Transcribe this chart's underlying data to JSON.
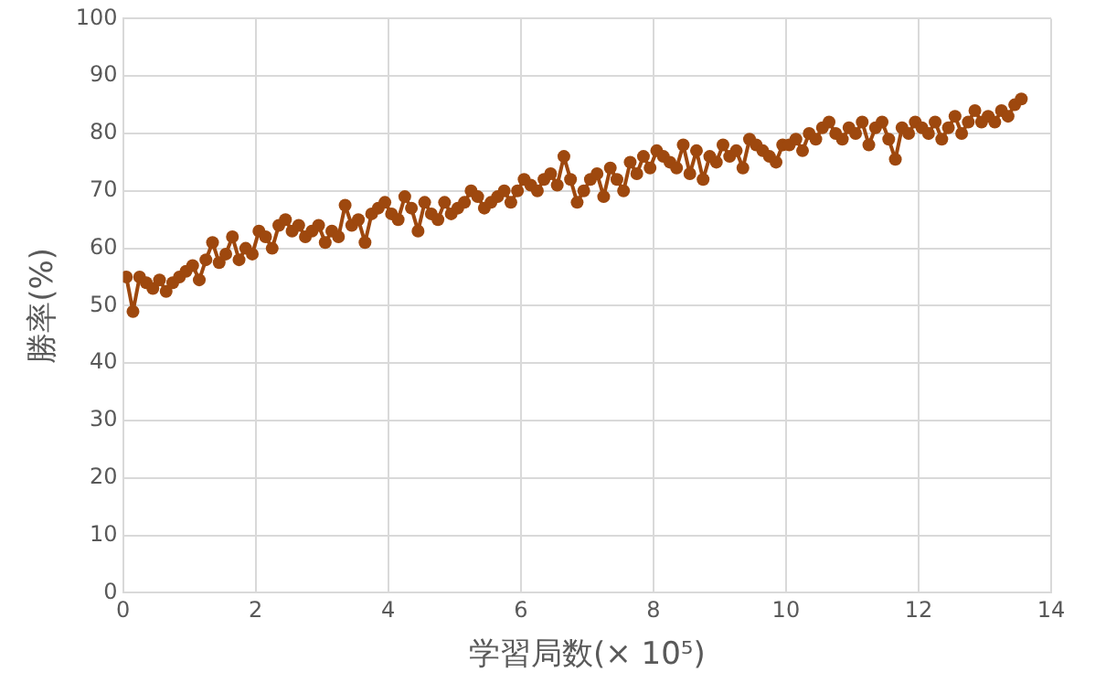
{
  "chart_data": {
    "type": "line",
    "xlabel": "学習局数(× 10⁵)",
    "ylabel": "勝率(%)",
    "marker": "circle",
    "line_style": "solid",
    "grid": true,
    "legend": false,
    "xlim": [
      0,
      14
    ],
    "xticks": [
      0,
      2,
      4,
      6,
      8,
      10,
      12,
      14
    ],
    "ylim": [
      0,
      100
    ],
    "yticks": [
      0,
      10,
      20,
      30,
      40,
      50,
      60,
      70,
      80,
      90,
      100
    ],
    "series": [
      {
        "color": "#9e480e",
        "x": [
          0.05,
          0.15,
          0.25,
          0.35,
          0.45,
          0.55,
          0.65,
          0.75,
          0.85,
          0.95,
          1.05,
          1.15,
          1.25,
          1.35,
          1.45,
          1.55,
          1.65,
          1.75,
          1.85,
          1.95,
          2.05,
          2.15,
          2.25,
          2.35,
          2.45,
          2.55,
          2.65,
          2.75,
          2.85,
          2.95,
          3.05,
          3.15,
          3.25,
          3.35,
          3.45,
          3.55,
          3.65,
          3.75,
          3.85,
          3.95,
          4.05,
          4.15,
          4.25,
          4.35,
          4.45,
          4.55,
          4.65,
          4.75,
          4.85,
          4.95,
          5.05,
          5.15,
          5.25,
          5.35,
          5.45,
          5.55,
          5.65,
          5.75,
          5.85,
          5.95,
          6.05,
          6.15,
          6.25,
          6.35,
          6.45,
          6.55,
          6.65,
          6.75,
          6.85,
          6.95,
          7.05,
          7.15,
          7.25,
          7.35,
          7.45,
          7.55,
          7.65,
          7.75,
          7.85,
          7.95,
          8.05,
          8.15,
          8.25,
          8.35,
          8.45,
          8.55,
          8.65,
          8.75,
          8.85,
          8.95,
          9.05,
          9.15,
          9.25,
          9.35,
          9.45,
          9.55,
          9.65,
          9.75,
          9.85,
          9.95,
          10.05,
          10.15,
          10.25,
          10.35,
          10.45,
          10.55,
          10.65,
          10.75,
          10.85,
          10.95,
          11.05,
          11.15,
          11.25,
          11.35,
          11.45,
          11.55,
          11.65,
          11.75,
          11.85,
          11.95,
          12.05,
          12.15,
          12.25,
          12.35,
          12.45,
          12.55,
          12.65,
          12.75,
          12.85,
          12.95,
          13.05,
          13.15,
          13.25,
          13.35,
          13.45,
          13.55
        ],
        "values": [
          55,
          49,
          55,
          54,
          53,
          54.5,
          52.5,
          54,
          55,
          56,
          57,
          54.5,
          58,
          61,
          57.5,
          59,
          62,
          58,
          60,
          59,
          63,
          62,
          60,
          64,
          65,
          63,
          64,
          62,
          63,
          64,
          61,
          63,
          62,
          67.5,
          64,
          65,
          61,
          66,
          67,
          68,
          66,
          65,
          69,
          67,
          63,
          68,
          66,
          65,
          68,
          66,
          67,
          68,
          70,
          69,
          67,
          68,
          69,
          70,
          68,
          70,
          72,
          71,
          70,
          72,
          73,
          71,
          76,
          72,
          68,
          70,
          72,
          73,
          69,
          74,
          72,
          70,
          75,
          73,
          76,
          74,
          77,
          76,
          75,
          74,
          78,
          73,
          77,
          72,
          76,
          75,
          78,
          76,
          77,
          74,
          79,
          78,
          77,
          76,
          75,
          78,
          78,
          79,
          77,
          80,
          79,
          81,
          82,
          80,
          79,
          81,
          80,
          82,
          78,
          81,
          82,
          79,
          75.5,
          81,
          80,
          82,
          81,
          80,
          82,
          79,
          81,
          83,
          80,
          82,
          84,
          82,
          83,
          82,
          84,
          83,
          85,
          86
        ]
      }
    ]
  }
}
